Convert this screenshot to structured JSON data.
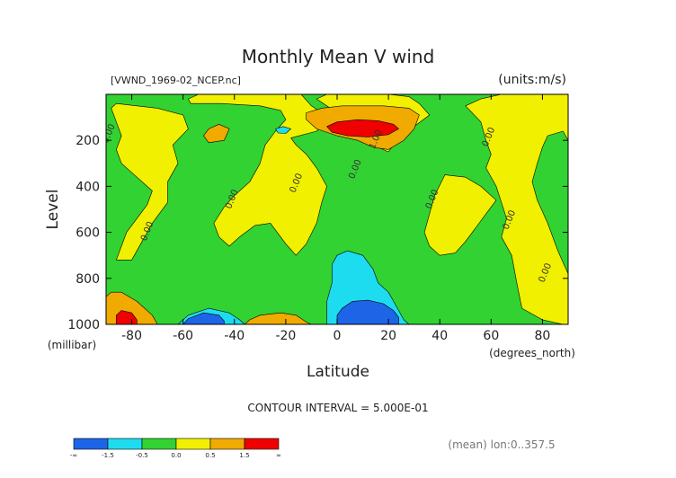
{
  "chart_data": {
    "type": "heatmap",
    "title": "Monthly Mean V wind",
    "subtitle": "[VWND_1969-02_NCEP.nc]",
    "units": "(units:m/s)",
    "xlabel": "Latitude",
    "xunits": "(degrees_north)",
    "ylabel": "Level",
    "yunits": "(millibar)",
    "xlim": [
      -90,
      90
    ],
    "ylim": [
      1000,
      0
    ],
    "x_ticks": [
      -80,
      -60,
      -40,
      -20,
      0,
      20,
      40,
      60,
      80
    ],
    "y_ticks": [
      200,
      400,
      600,
      800,
      1000
    ],
    "x_tick_labels": [
      "-80",
      "-60",
      "-40",
      "-20",
      "0",
      "20",
      "40",
      "60",
      "80"
    ],
    "y_tick_labels": [
      "200",
      "400",
      "600",
      "800",
      "1000"
    ],
    "contour_interval_text": "CONTOUR INTERVAL = 5.000E-01",
    "footer_note": "(mean) lon:0..357.5",
    "contour_labels": [
      {
        "x": -88,
        "y": 175,
        "text": "0.00"
      },
      {
        "x": -73,
        "y": 600,
        "text": "0.00"
      },
      {
        "x": -40,
        "y": 460,
        "text": "0.00"
      },
      {
        "x": -15,
        "y": 390,
        "text": "0.00"
      },
      {
        "x": 8,
        "y": 330,
        "text": "0.00"
      },
      {
        "x": 16,
        "y": 200,
        "text": "1.00"
      },
      {
        "x": 38,
        "y": 460,
        "text": "0.00"
      },
      {
        "x": 60,
        "y": 190,
        "text": "0.00"
      },
      {
        "x": 68,
        "y": 550,
        "text": "0.00"
      },
      {
        "x": 82,
        "y": 780,
        "text": "0.00"
      }
    ],
    "colorbar": {
      "colors": [
        "#1e64e6",
        "#1edcf0",
        "#32d232",
        "#f0f000",
        "#f0aa00",
        "#f00000"
      ],
      "labels": [
        "-∞",
        "-1.5",
        "-0.5",
        "0.0",
        "0.5",
        "1.5",
        "∞"
      ],
      "bins": [
        [
          "-∞",
          "-1.5"
        ],
        [
          "-1.5",
          "-0.5"
        ],
        [
          "-0.5",
          "0.0"
        ],
        [
          "0.0",
          "0.5"
        ],
        [
          "0.5",
          "1.5"
        ],
        [
          "1.5",
          "∞"
        ]
      ]
    },
    "background_color": "#32d232",
    "regions": [
      {
        "value_range": [
          0.0,
          0.5
        ],
        "color": "#f0f000",
        "polygon": [
          [
            -86,
            720
          ],
          [
            -82,
            600
          ],
          [
            -78,
            540
          ],
          [
            -74,
            480
          ],
          [
            -72,
            420
          ],
          [
            -78,
            360
          ],
          [
            -84,
            300
          ],
          [
            -86,
            240
          ],
          [
            -84,
            180
          ],
          [
            -86,
            120
          ],
          [
            -88,
            60
          ],
          [
            -86,
            40
          ],
          [
            -70,
            60
          ],
          [
            -60,
            90
          ],
          [
            -58,
            150
          ],
          [
            -64,
            220
          ],
          [
            -62,
            300
          ],
          [
            -66,
            380
          ],
          [
            -66,
            470
          ],
          [
            -72,
            560
          ],
          [
            -76,
            640
          ],
          [
            -80,
            720
          ]
        ]
      },
      {
        "value_range": [
          0.0,
          0.5
        ],
        "color": "#f0f000",
        "polygon": [
          [
            -57,
            40
          ],
          [
            -45,
            40
          ],
          [
            -30,
            50
          ],
          [
            -22,
            70
          ],
          [
            -20,
            110
          ],
          [
            -24,
            160
          ],
          [
            -28,
            220
          ],
          [
            -30,
            300
          ],
          [
            -34,
            380
          ],
          [
            -40,
            440
          ],
          [
            -44,
            490
          ],
          [
            -48,
            560
          ],
          [
            -46,
            620
          ],
          [
            -42,
            660
          ],
          [
            -38,
            620
          ],
          [
            -32,
            570
          ],
          [
            -26,
            560
          ],
          [
            -20,
            650
          ],
          [
            -16,
            700
          ],
          [
            -12,
            650
          ],
          [
            -8,
            560
          ],
          [
            -6,
            470
          ],
          [
            -4,
            400
          ],
          [
            -8,
            320
          ],
          [
            -12,
            260
          ],
          [
            -16,
            220
          ],
          [
            -18,
            190
          ],
          [
            -8,
            160
          ],
          [
            -4,
            120
          ],
          [
            -6,
            80
          ],
          [
            -10,
            50
          ],
          [
            -14,
            0
          ],
          [
            -54,
            0
          ],
          [
            -58,
            20
          ]
        ]
      },
      {
        "value_range": [
          0.0,
          0.5
        ],
        "color": "#f0f000",
        "polygon": [
          [
            -8,
            20
          ],
          [
            0,
            80
          ],
          [
            0,
            140
          ],
          [
            8,
            190
          ],
          [
            16,
            230
          ],
          [
            20,
            250
          ],
          [
            24,
            190
          ],
          [
            30,
            140
          ],
          [
            36,
            90
          ],
          [
            32,
            40
          ],
          [
            28,
            10
          ],
          [
            20,
            0
          ],
          [
            -4,
            0
          ]
        ]
      },
      {
        "value_range": [
          0.0,
          0.5
        ],
        "color": "#f0f000",
        "polygon": [
          [
            42,
            350
          ],
          [
            38,
            440
          ],
          [
            36,
            520
          ],
          [
            34,
            600
          ],
          [
            36,
            660
          ],
          [
            40,
            700
          ],
          [
            46,
            690
          ],
          [
            50,
            640
          ],
          [
            54,
            580
          ],
          [
            58,
            520
          ],
          [
            62,
            460
          ],
          [
            56,
            400
          ],
          [
            50,
            360
          ]
        ]
      },
      {
        "value_range": [
          0.0,
          0.5
        ],
        "color": "#f0f000",
        "polygon": [
          [
            50,
            50
          ],
          [
            56,
            120
          ],
          [
            58,
            200
          ],
          [
            60,
            260
          ],
          [
            58,
            320
          ],
          [
            62,
            400
          ],
          [
            64,
            470
          ],
          [
            66,
            540
          ],
          [
            64,
            620
          ],
          [
            68,
            700
          ],
          [
            70,
            820
          ],
          [
            72,
            930
          ],
          [
            80,
            980
          ],
          [
            88,
            1000
          ],
          [
            90,
            1000
          ],
          [
            90,
            780
          ],
          [
            86,
            680
          ],
          [
            82,
            560
          ],
          [
            78,
            460
          ],
          [
            76,
            380
          ],
          [
            78,
            300
          ],
          [
            80,
            230
          ],
          [
            82,
            180
          ],
          [
            88,
            160
          ],
          [
            90,
            200
          ],
          [
            90,
            0
          ],
          [
            64,
            0
          ],
          [
            56,
            20
          ]
        ]
      },
      {
        "value_range": [
          0.5,
          1.5
        ],
        "color": "#f0aa00",
        "polygon": [
          [
            -50,
            150
          ],
          [
            -46,
            130
          ],
          [
            -42,
            150
          ],
          [
            -44,
            200
          ],
          [
            -50,
            210
          ],
          [
            -52,
            180
          ]
        ]
      },
      {
        "value_range": [
          0.5,
          1.5
        ],
        "color": "#f0aa00",
        "polygon": [
          [
            -88,
            860
          ],
          [
            -84,
            860
          ],
          [
            -78,
            900
          ],
          [
            -72,
            960
          ],
          [
            -70,
            1000
          ],
          [
            -90,
            1000
          ],
          [
            -90,
            880
          ]
        ]
      },
      {
        "value_range": [
          0.5,
          1.5
        ],
        "color": "#f0aa00",
        "polygon": [
          [
            -34,
            980
          ],
          [
            -30,
            960
          ],
          [
            -22,
            950
          ],
          [
            -16,
            960
          ],
          [
            -12,
            990
          ],
          [
            -10,
            1000
          ],
          [
            -36,
            1000
          ]
        ]
      },
      {
        "value_range": [
          0.5,
          1.5
        ],
        "color": "#f0aa00",
        "polygon": [
          [
            -12,
            80
          ],
          [
            -6,
            60
          ],
          [
            2,
            50
          ],
          [
            18,
            50
          ],
          [
            28,
            60
          ],
          [
            32,
            90
          ],
          [
            30,
            150
          ],
          [
            26,
            200
          ],
          [
            20,
            240
          ],
          [
            14,
            230
          ],
          [
            8,
            200
          ],
          [
            0,
            180
          ],
          [
            -8,
            150
          ],
          [
            -12,
            110
          ]
        ]
      },
      {
        "value_range": [
          1.5,
          3.0
        ],
        "color": "#f00000",
        "polygon": [
          [
            -4,
            140
          ],
          [
            0,
            120
          ],
          [
            8,
            110
          ],
          [
            16,
            115
          ],
          [
            22,
            130
          ],
          [
            24,
            150
          ],
          [
            20,
            175
          ],
          [
            12,
            185
          ],
          [
            4,
            180
          ],
          [
            -2,
            165
          ]
        ]
      },
      {
        "value_range": [
          1.5,
          3.0
        ],
        "color": "#f00000",
        "polygon": [
          [
            -84,
            940
          ],
          [
            -80,
            950
          ],
          [
            -78,
            980
          ],
          [
            -78,
            1000
          ],
          [
            -86,
            1000
          ],
          [
            -86,
            960
          ]
        ]
      },
      {
        "value_range": [
          -1.5,
          -0.5
        ],
        "color": "#1edcf0",
        "polygon": [
          [
            -2,
            740
          ],
          [
            0,
            700
          ],
          [
            4,
            680
          ],
          [
            10,
            700
          ],
          [
            14,
            760
          ],
          [
            16,
            820
          ],
          [
            20,
            860
          ],
          [
            22,
            900
          ],
          [
            24,
            940
          ],
          [
            26,
            980
          ],
          [
            28,
            1000
          ],
          [
            -4,
            1000
          ],
          [
            -4,
            900
          ],
          [
            -2,
            820
          ]
        ]
      },
      {
        "value_range": [
          -1.5,
          -0.5
        ],
        "color": "#1edcf0",
        "polygon": [
          [
            -62,
            1000
          ],
          [
            -58,
            960
          ],
          [
            -50,
            930
          ],
          [
            -42,
            950
          ],
          [
            -38,
            980
          ],
          [
            -36,
            1000
          ]
        ]
      },
      {
        "value_range": [
          -1.5,
          -0.5
        ],
        "color": "#1edcf0",
        "polygon": [
          [
            -24,
            150
          ],
          [
            -21,
            140
          ],
          [
            -18,
            150
          ],
          [
            -20,
            170
          ],
          [
            -23,
            168
          ]
        ]
      },
      {
        "value_range": [
          -3.0,
          -1.5
        ],
        "color": "#1e64e6",
        "polygon": [
          [
            2,
            930
          ],
          [
            6,
            900
          ],
          [
            12,
            895
          ],
          [
            18,
            910
          ],
          [
            22,
            940
          ],
          [
            24,
            970
          ],
          [
            24,
            1000
          ],
          [
            0,
            1000
          ],
          [
            0,
            960
          ]
        ]
      },
      {
        "value_range": [
          -3.0,
          -1.5
        ],
        "color": "#1e64e6",
        "polygon": [
          [
            -60,
            1000
          ],
          [
            -58,
            975
          ],
          [
            -52,
            950
          ],
          [
            -46,
            960
          ],
          [
            -44,
            985
          ],
          [
            -44,
            1000
          ]
        ]
      }
    ]
  }
}
